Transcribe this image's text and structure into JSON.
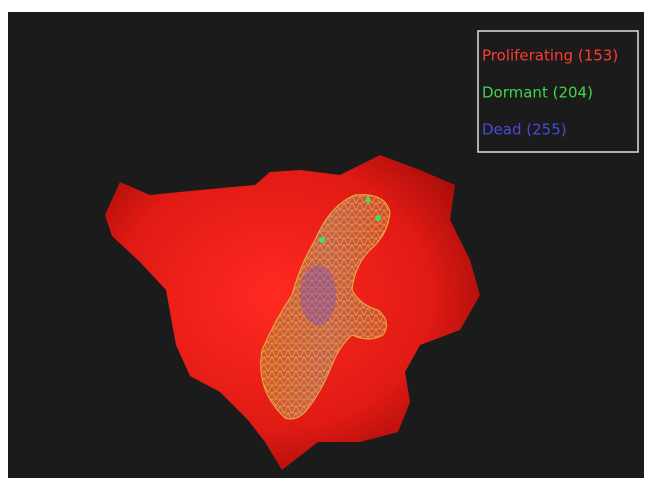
{
  "legend": {
    "items": [
      {
        "label": "Proliferating (153)",
        "color": "#ff3b2f"
      },
      {
        "label": "Dormant (204)",
        "color": "#3fd64a"
      },
      {
        "label": "Dead (255)",
        "color": "#4b4bd6"
      }
    ]
  }
}
